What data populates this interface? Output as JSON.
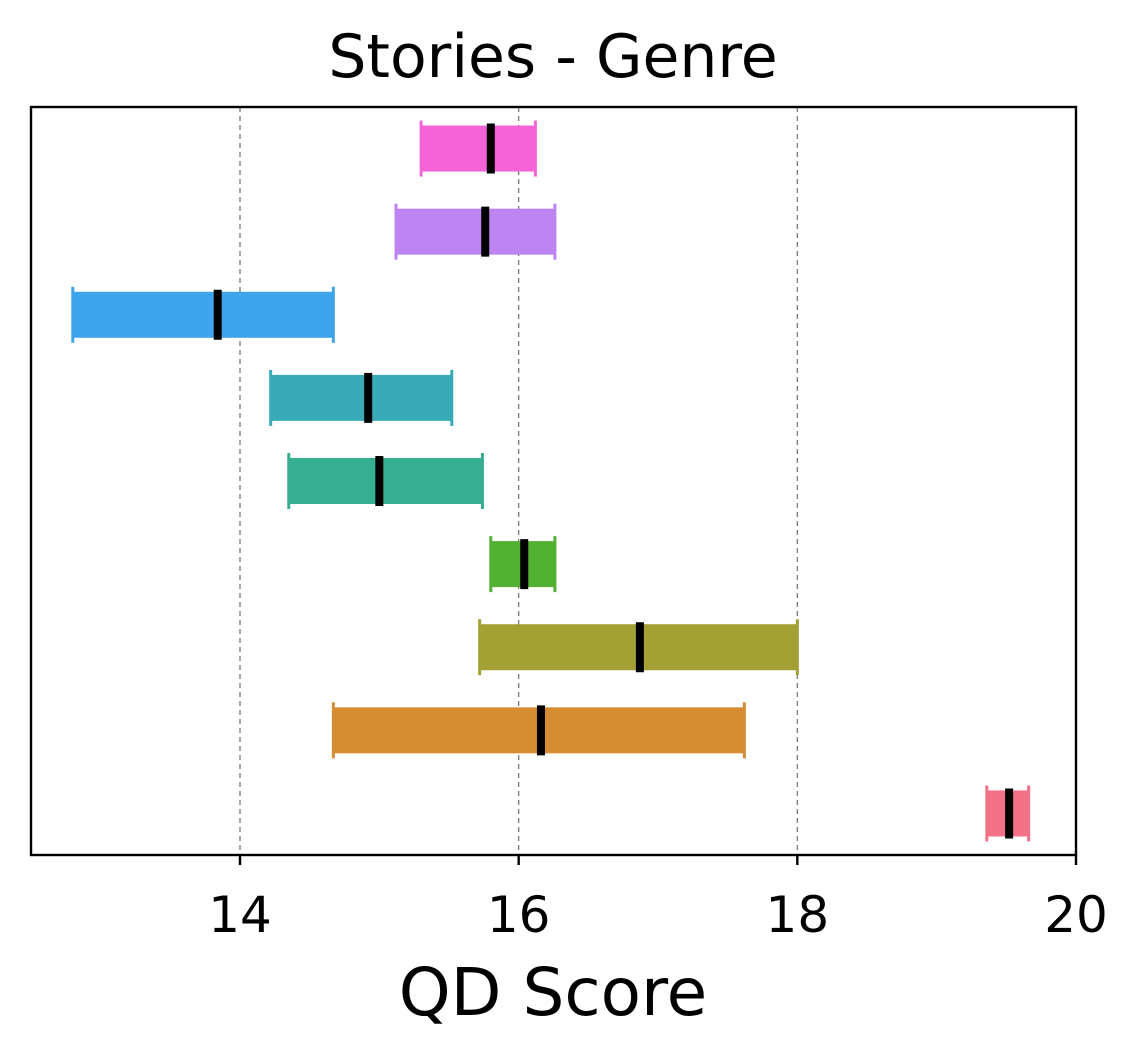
{
  "chart_data": {
    "type": "range-bar",
    "title": "Stories - Genre",
    "xlabel": "QD Score",
    "ylabel": "",
    "xlim": [
      12.5,
      20
    ],
    "xticks": [
      "14",
      "16",
      "18",
      "20"
    ],
    "grid": "vertical dashed",
    "ranges": [
      {
        "low": 15.3,
        "high": 16.12,
        "mid": 15.8,
        "color": "#f564d6"
      },
      {
        "low": 15.12,
        "high": 16.26,
        "mid": 15.76,
        "color": "#bd84f2"
      },
      {
        "low": 12.8,
        "high": 14.67,
        "mid": 13.84,
        "color": "#3ea4eb"
      },
      {
        "low": 14.22,
        "high": 15.52,
        "mid": 14.92,
        "color": "#38abb7"
      },
      {
        "low": 14.35,
        "high": 15.74,
        "mid": 15.0,
        "color": "#36ae91"
      },
      {
        "low": 15.8,
        "high": 16.26,
        "mid": 16.04,
        "color": "#52b032"
      },
      {
        "low": 15.72,
        "high": 18.0,
        "mid": 16.87,
        "color": "#a3a034"
      },
      {
        "low": 14.67,
        "high": 17.62,
        "mid": 16.16,
        "color": "#d68c33"
      },
      {
        "low": 19.36,
        "high": 19.66,
        "mid": 19.52,
        "color": "#f47287"
      }
    ],
    "median_color": "#000000"
  }
}
